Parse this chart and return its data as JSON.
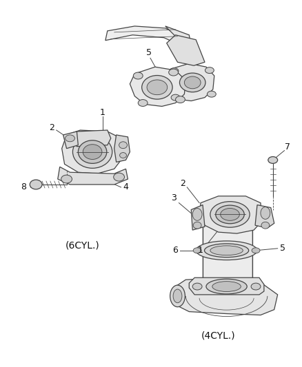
{
  "background_color": "#ffffff",
  "figure_width": 4.38,
  "figure_height": 5.33,
  "dpi": 100,
  "line_color": "#444444",
  "label_color": "#111111",
  "label_6cyl": "(6CYL.)",
  "label_4cyl": "(4CYL.)",
  "lw_main": 0.9
}
